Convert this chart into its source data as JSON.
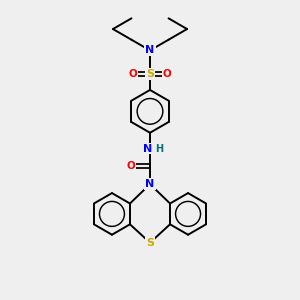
{
  "background_color": "#efefef",
  "atom_colors": {
    "C": "#000000",
    "N": "#0000ff",
    "O": "#ff0000",
    "S_sulfonyl": "#ccaa00",
    "S_thio": "#ccaa00",
    "H": "#007070"
  },
  "bond_color": "#000000",
  "bond_lw": 1.4,
  "figsize": [
    3.0,
    3.0
  ],
  "dpi": 100,
  "xlim": [
    0,
    10
  ],
  "ylim": [
    0,
    10
  ]
}
